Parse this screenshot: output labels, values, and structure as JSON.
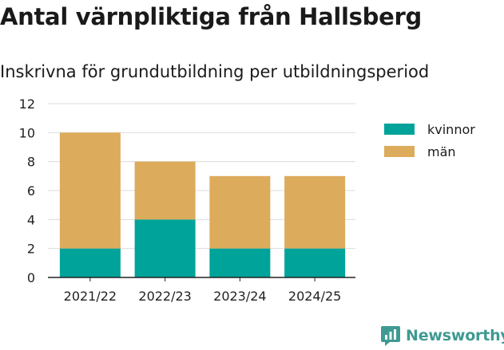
{
  "title": "Antal värnpliktiga från Hallsberg",
  "subtitle": "Inskrivna för grundutbildning per utbildningsperiod",
  "brand": "Newsworthy",
  "colors": {
    "kvinnor": "#00a39a",
    "man": "#dcab5c",
    "grid": "#dcdcdc",
    "brand": "#3f9a92"
  },
  "chart_data": {
    "type": "bar",
    "stacked": true,
    "categories": [
      "2021/22",
      "2022/23",
      "2023/24",
      "2024/25"
    ],
    "series": [
      {
        "name": "kvinnor",
        "values": [
          2,
          4,
          2,
          2
        ]
      },
      {
        "name": "män",
        "values": [
          8,
          4,
          5,
          5
        ]
      }
    ],
    "ylim": [
      0,
      12
    ],
    "yticks": [
      "0",
      "2",
      "4",
      "6",
      "8",
      "10",
      "12"
    ],
    "grid": true,
    "legend": "right"
  }
}
